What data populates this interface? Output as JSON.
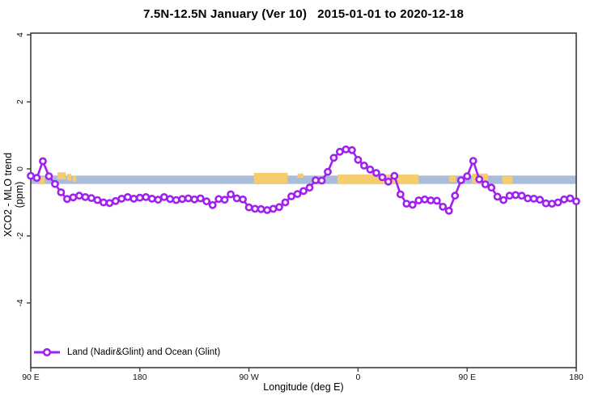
{
  "title": {
    "text": "7.5N-12.5N January (Ver 10)   2015-01-01 to 2020-12-18"
  },
  "chart_data": {
    "type": "line",
    "title": "7.5N-12.5N January (Ver 10)   2015-01-01 to 2020-12-18",
    "xlabel": "Longitude (deg E)",
    "ylabel": "XCO2 - MLO trend (ppm)",
    "xlim": [
      90,
      540
    ],
    "ylim": [
      -5.93,
      4.05
    ],
    "grid": false,
    "frame_color": "#3c3c3c",
    "tick_label_color": "#111111",
    "x_ticks": [
      {
        "value": 90,
        "label": "90 E"
      },
      {
        "value": 180,
        "label": "180"
      },
      {
        "value": 270,
        "label": "90 W"
      },
      {
        "value": 360,
        "label": "0"
      },
      {
        "value": 450,
        "label": "90 E"
      },
      {
        "value": 540,
        "label": "180"
      }
    ],
    "y_ticks": [
      {
        "value": 4,
        "label": "4"
      },
      {
        "value": 2,
        "label": "2"
      },
      {
        "value": 0,
        "label": "0"
      },
      {
        "value": -2,
        "label": "-2"
      },
      {
        "value": -4,
        "label": "-4"
      }
    ],
    "reference_band": {
      "color": "#A9BCD9",
      "y_range": [
        -0.45,
        -0.2
      ]
    },
    "land_marks": {
      "color": "#F6CD6E",
      "patches": [
        {
          "lon": [
            97,
            101.5
          ],
          "y": [
            -0.46,
            -0.24
          ]
        },
        {
          "lon": [
            112,
            119
          ],
          "y": [
            -0.31,
            -0.1
          ]
        },
        {
          "lon": [
            120,
            123.5
          ],
          "y": [
            -0.35,
            -0.15
          ]
        },
        {
          "lon": [
            124.5,
            127.5
          ],
          "y": [
            -0.38,
            -0.2
          ]
        },
        {
          "lon": [
            274,
            302
          ],
          "y": [
            -0.43,
            -0.12
          ]
        },
        {
          "lon": [
            310,
            315
          ],
          "y": [
            -0.27,
            -0.14
          ]
        },
        {
          "lon": [
            343,
            410
          ],
          "y": [
            -0.46,
            -0.17
          ]
        },
        {
          "lon": [
            435,
            440.5
          ],
          "y": [
            -0.39,
            -0.19
          ]
        },
        {
          "lon": [
            454,
            467
          ],
          "y": [
            -0.43,
            -0.14
          ]
        },
        {
          "lon": [
            479,
            487.5
          ],
          "y": [
            -0.46,
            -0.22
          ]
        }
      ]
    },
    "legend": {
      "position": "bottom-left"
    },
    "series": [
      {
        "name": "Land (Nadir&Glint) and Ocean (Glint)",
        "color": "#A020F0",
        "marker": "open-circle",
        "x": [
          90,
          95,
          100,
          105,
          110,
          115,
          120,
          125,
          130,
          135,
          140,
          145,
          150,
          155,
          160,
          165,
          170,
          175,
          180,
          185,
          190,
          195,
          200,
          205,
          210,
          215,
          220,
          225,
          230,
          235,
          240,
          245,
          250,
          255,
          260,
          265,
          270,
          275,
          280,
          285,
          290,
          295,
          300,
          305,
          310,
          315,
          320,
          325,
          330,
          335,
          340,
          345,
          350,
          355,
          360,
          365,
          370,
          375,
          380,
          385,
          390,
          395,
          400,
          405,
          410,
          415,
          420,
          425,
          430,
          435,
          440,
          445,
          450,
          455,
          460,
          465,
          470,
          475,
          480,
          485,
          490,
          495,
          500,
          505,
          510,
          515,
          520,
          525,
          530,
          535,
          540
        ],
        "y": [
          -0.21,
          -0.27,
          0.23,
          -0.22,
          -0.45,
          -0.7,
          -0.9,
          -0.85,
          -0.8,
          -0.84,
          -0.87,
          -0.93,
          -1.0,
          -1.02,
          -0.96,
          -0.89,
          -0.84,
          -0.89,
          -0.86,
          -0.84,
          -0.89,
          -0.92,
          -0.84,
          -0.9,
          -0.93,
          -0.9,
          -0.88,
          -0.91,
          -0.88,
          -0.97,
          -1.08,
          -0.9,
          -0.92,
          -0.76,
          -0.88,
          -0.91,
          -1.15,
          -1.19,
          -1.2,
          -1.23,
          -1.19,
          -1.14,
          -1.0,
          -0.82,
          -0.75,
          -0.66,
          -0.56,
          -0.34,
          -0.35,
          -0.09,
          0.33,
          0.51,
          0.58,
          0.56,
          0.27,
          0.1,
          -0.02,
          -0.12,
          -0.25,
          -0.38,
          -0.21,
          -0.76,
          -1.04,
          -1.07,
          -0.94,
          -0.91,
          -0.94,
          -0.95,
          -1.13,
          -1.25,
          -0.8,
          -0.34,
          -0.22,
          0.24,
          -0.31,
          -0.46,
          -0.56,
          -0.83,
          -0.93,
          -0.8,
          -0.78,
          -0.8,
          -0.88,
          -0.89,
          -0.92,
          -1.03,
          -1.04,
          -1.0,
          -0.91,
          -0.88,
          -0.97
        ]
      }
    ]
  }
}
